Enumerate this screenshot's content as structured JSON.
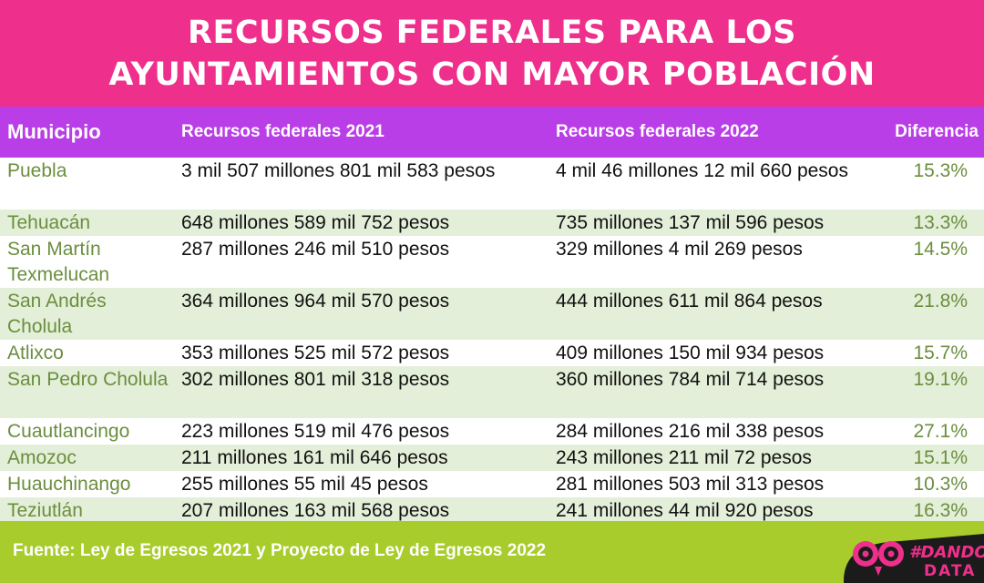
{
  "header": {
    "title_line1": "RECURSOS FEDERALES PARA LOS",
    "title_line2": "AYUNTAMIENTOS CON MAYOR POBLACIÓN"
  },
  "chart_data": {
    "type": "table",
    "title": "RECURSOS FEDERALES PARA LOS AYUNTAMIENTOS CON MAYOR POBLACIÓN",
    "columns": [
      "Municipio",
      "Recursos federales 2021",
      "Recursos federales 2022",
      "Diferencia"
    ],
    "rows": [
      {
        "municipio": "Puebla",
        "r2021": "3 mil 507 millones 801 mil 583 pesos",
        "r2022": "4 mil 46 millones 12 mil 660 pesos",
        "diferencia": "15.3%"
      },
      {
        "municipio": "Tehuacán",
        "r2021": "648 millones 589 mil 752 pesos",
        "r2022": "735 millones 137 mil 596 pesos",
        "diferencia": "13.3%"
      },
      {
        "municipio": "San Martín Texmelucan",
        "r2021": "287 millones 246 mil 510 pesos",
        "r2022": "329 millones 4 mil 269 pesos",
        "diferencia": "14.5%"
      },
      {
        "municipio": "San Andrés Cholula",
        "r2021": "364 millones 964 mil 570 pesos",
        "r2022": "444 millones 611 mil 864 pesos",
        "diferencia": "21.8%"
      },
      {
        "municipio": "Atlixco",
        "r2021": "353 millones 525 mil 572 pesos",
        "r2022": "409 millones 150 mil 934 pesos",
        "diferencia": "15.7%"
      },
      {
        "municipio": "San Pedro Cholula",
        "r2021": "302 millones 801 mil 318 pesos",
        "r2022": "360 millones 784 mil 714 pesos",
        "diferencia": "19.1%"
      },
      {
        "municipio": "Cuautlancingo",
        "r2021": "223 millones 519 mil 476 pesos",
        "r2022": "284 millones 216 mil 338 pesos",
        "diferencia": "27.1%"
      },
      {
        "municipio": "Amozoc",
        "r2021": "211 millones 161 mil 646 pesos",
        "r2022": "243 millones 211 mil 72 pesos",
        "diferencia": "15.1%"
      },
      {
        "municipio": "Huauchinango",
        "r2021": "255 millones 55 mil 45 pesos",
        "r2022": "281 millones 503 mil 313 pesos",
        "diferencia": "10.3%"
      },
      {
        "municipio": "Teziutlán",
        "r2021": "207 millones 163 mil 568 pesos",
        "r2022": "241 millones 44 mil 920 pesos",
        "diferencia": "16.3%"
      }
    ]
  },
  "footer": {
    "source": "Fuente: Ley de Egresos 2021 y Proyecto de Ley de Egresos 2022"
  },
  "logo": {
    "hash_text": "#DANDO",
    "text2": "DATA",
    "icon": "owl-eyes-icon"
  },
  "colors": {
    "header_bg": "#ee2f8b",
    "table_header_bg": "#b93ee8",
    "row_alt_bg": "#e3efd8",
    "municipio_text": "#6b8e3e",
    "footer_bg": "#a8cc2b",
    "logo_pink": "#ee2f8b",
    "logo_dark": "#1b1b1b"
  }
}
